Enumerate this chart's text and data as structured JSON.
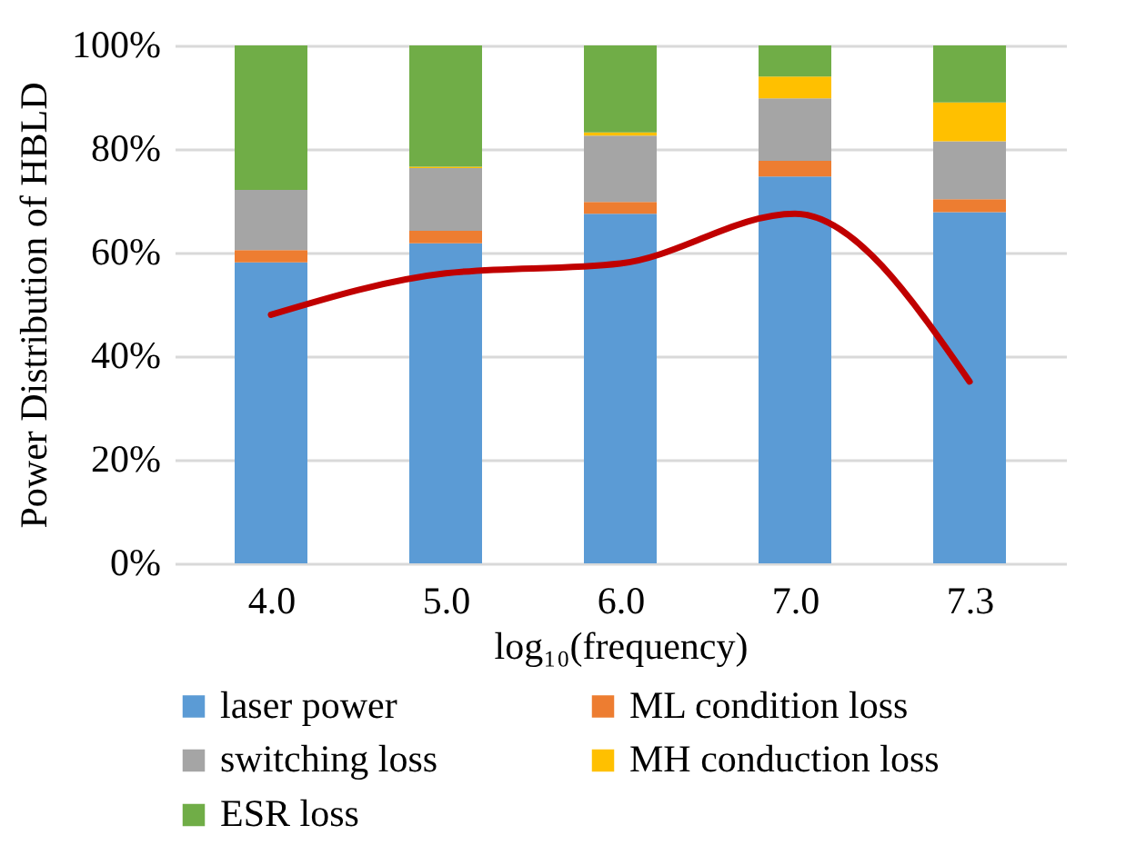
{
  "chart_data": {
    "type": "bar",
    "stacked": true,
    "xlabel": "log₁₀(frequency)",
    "ylabel": "Power Distribution of HBLD",
    "categories": [
      "4.0",
      "5.0",
      "6.0",
      "7.0",
      "7.3"
    ],
    "series": [
      {
        "name": "laser power",
        "color": "#5b9bd5",
        "values": [
          58.1,
          61.8,
          67.5,
          74.7,
          67.8
        ]
      },
      {
        "name": "ML condition loss",
        "color": "#ed7d31",
        "values": [
          2.4,
          2.4,
          2.3,
          3.0,
          2.5
        ]
      },
      {
        "name": "switching loss",
        "color": "#a5a5a5",
        "values": [
          11.6,
          12.1,
          12.8,
          12.1,
          11.2
        ]
      },
      {
        "name": "MH conduction loss",
        "color": "#ffc000",
        "values": [
          0,
          0.3,
          0.6,
          4.2,
          7.5
        ]
      },
      {
        "name": "ESR loss",
        "color": "#70ad47",
        "values": [
          27.9,
          23.4,
          16.8,
          6.0,
          11.0
        ]
      },
      {
        "type": "line",
        "color": "#c00000",
        "values": [
          48.0,
          56.0,
          57.9,
          67.5,
          35.1
        ]
      }
    ],
    "ylim": [
      0,
      100
    ],
    "yticks": [
      {
        "value": 0,
        "label": "0%"
      },
      {
        "value": 20,
        "label": "20%"
      },
      {
        "value": 40,
        "label": "40%"
      },
      {
        "value": 60,
        "label": "60%"
      },
      {
        "value": 80,
        "label": "80%"
      },
      {
        "value": 100,
        "label": "100%"
      }
    ],
    "grid": "y",
    "legend": "bottom"
  }
}
